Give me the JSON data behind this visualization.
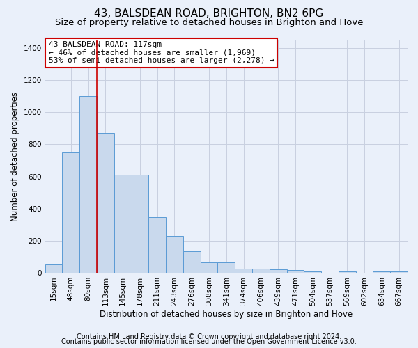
{
  "title": "43, BALSDEAN ROAD, BRIGHTON, BN2 6PG",
  "subtitle": "Size of property relative to detached houses in Brighton and Hove",
  "xlabel": "Distribution of detached houses by size in Brighton and Hove",
  "ylabel": "Number of detached properties",
  "footer_line1": "Contains HM Land Registry data © Crown copyright and database right 2024.",
  "footer_line2": "Contains public sector information licensed under the Open Government Licence v3.0.",
  "annotation_line1": "43 BALSDEAN ROAD: 117sqm",
  "annotation_line2": "← 46% of detached houses are smaller (1,969)",
  "annotation_line3": "53% of semi-detached houses are larger (2,278) →",
  "vline_bar_index": 3,
  "bar_color": "#c9d9ed",
  "bar_edge_color": "#5b9bd5",
  "vline_color": "#cc0000",
  "annotation_box_edge_color": "#cc0000",
  "annotation_box_face_color": "#ffffff",
  "background_color": "#eaf0fa",
  "categories": [
    "15sqm",
    "48sqm",
    "80sqm",
    "113sqm",
    "145sqm",
    "178sqm",
    "211sqm",
    "243sqm",
    "276sqm",
    "308sqm",
    "341sqm",
    "374sqm",
    "406sqm",
    "439sqm",
    "471sqm",
    "504sqm",
    "537sqm",
    "569sqm",
    "602sqm",
    "634sqm",
    "667sqm"
  ],
  "values": [
    50,
    750,
    1100,
    870,
    610,
    610,
    345,
    230,
    135,
    65,
    65,
    25,
    25,
    20,
    15,
    10,
    0,
    10,
    0,
    10,
    10
  ],
  "ylim": [
    0,
    1450
  ],
  "yticks": [
    0,
    200,
    400,
    600,
    800,
    1000,
    1200,
    1400
  ],
  "grid_color": "#c8d0e0",
  "title_fontsize": 11,
  "subtitle_fontsize": 9.5,
  "axis_label_fontsize": 8.5,
  "tick_fontsize": 7.5,
  "annotation_fontsize": 8,
  "footer_fontsize": 7
}
